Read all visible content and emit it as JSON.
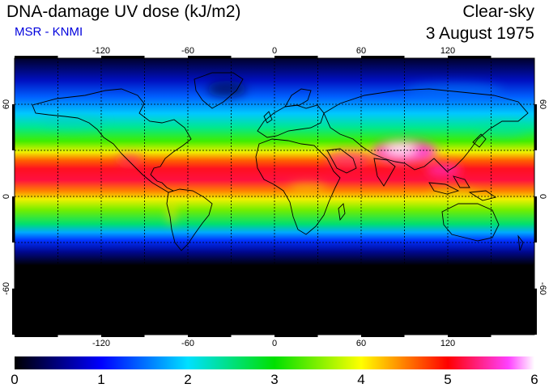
{
  "header": {
    "title": "DNA-damage UV dose (kJ/m2)",
    "subtitle": "MSR - KNMI",
    "condition": "Clear-sky",
    "date": "3 August 1975"
  },
  "map": {
    "projection": "equirectangular",
    "lon_range": [
      -180,
      180
    ],
    "lat_range": [
      -90,
      90
    ],
    "lon_ticks": [
      "-120",
      "-60",
      "0",
      "60",
      "120"
    ],
    "lat_ticks_left": [
      "60",
      "0",
      "-60"
    ],
    "lat_ticks_right": [
      "60",
      "0",
      "-60"
    ],
    "gridlines": "dotted, every 30 degrees"
  },
  "colorbar": {
    "min": 0,
    "max": 6,
    "labels": [
      "0",
      "1",
      "2",
      "3",
      "4",
      "5",
      "6"
    ],
    "colors": [
      "#000000",
      "#0000ff",
      "#00e0ff",
      "#00e000",
      "#ffff00",
      "#ff0000",
      "#ff00ff",
      "#ffffff"
    ]
  }
}
